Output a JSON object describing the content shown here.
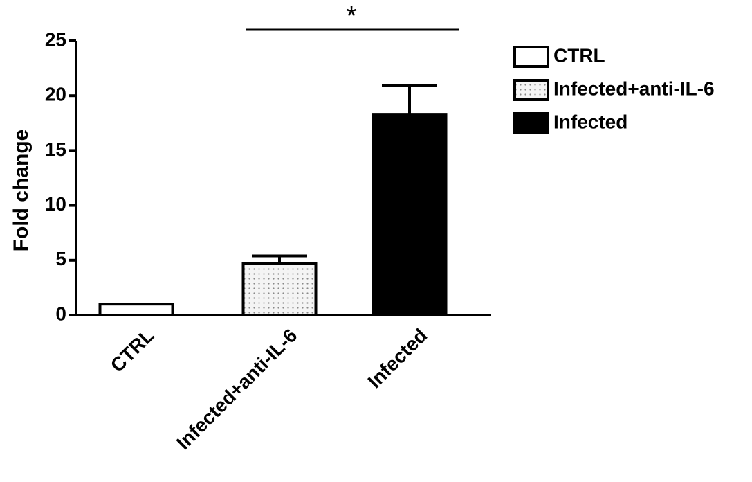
{
  "chart_data": {
    "type": "bar",
    "ylabel": "Fold change",
    "categories": [
      "CTRL",
      "Infected+anti-IL-6",
      "Infected"
    ],
    "values": [
      1.0,
      4.7,
      18.3
    ],
    "errors": [
      0,
      0.7,
      2.6
    ],
    "colors": [
      "#ffffff",
      "#f2f2f2",
      "#000000"
    ],
    "dotted": [
      false,
      true,
      false
    ],
    "ylim": [
      0,
      25
    ],
    "yticks": [
      0,
      5,
      10,
      15,
      20,
      25
    ],
    "annotation": "*"
  }
}
